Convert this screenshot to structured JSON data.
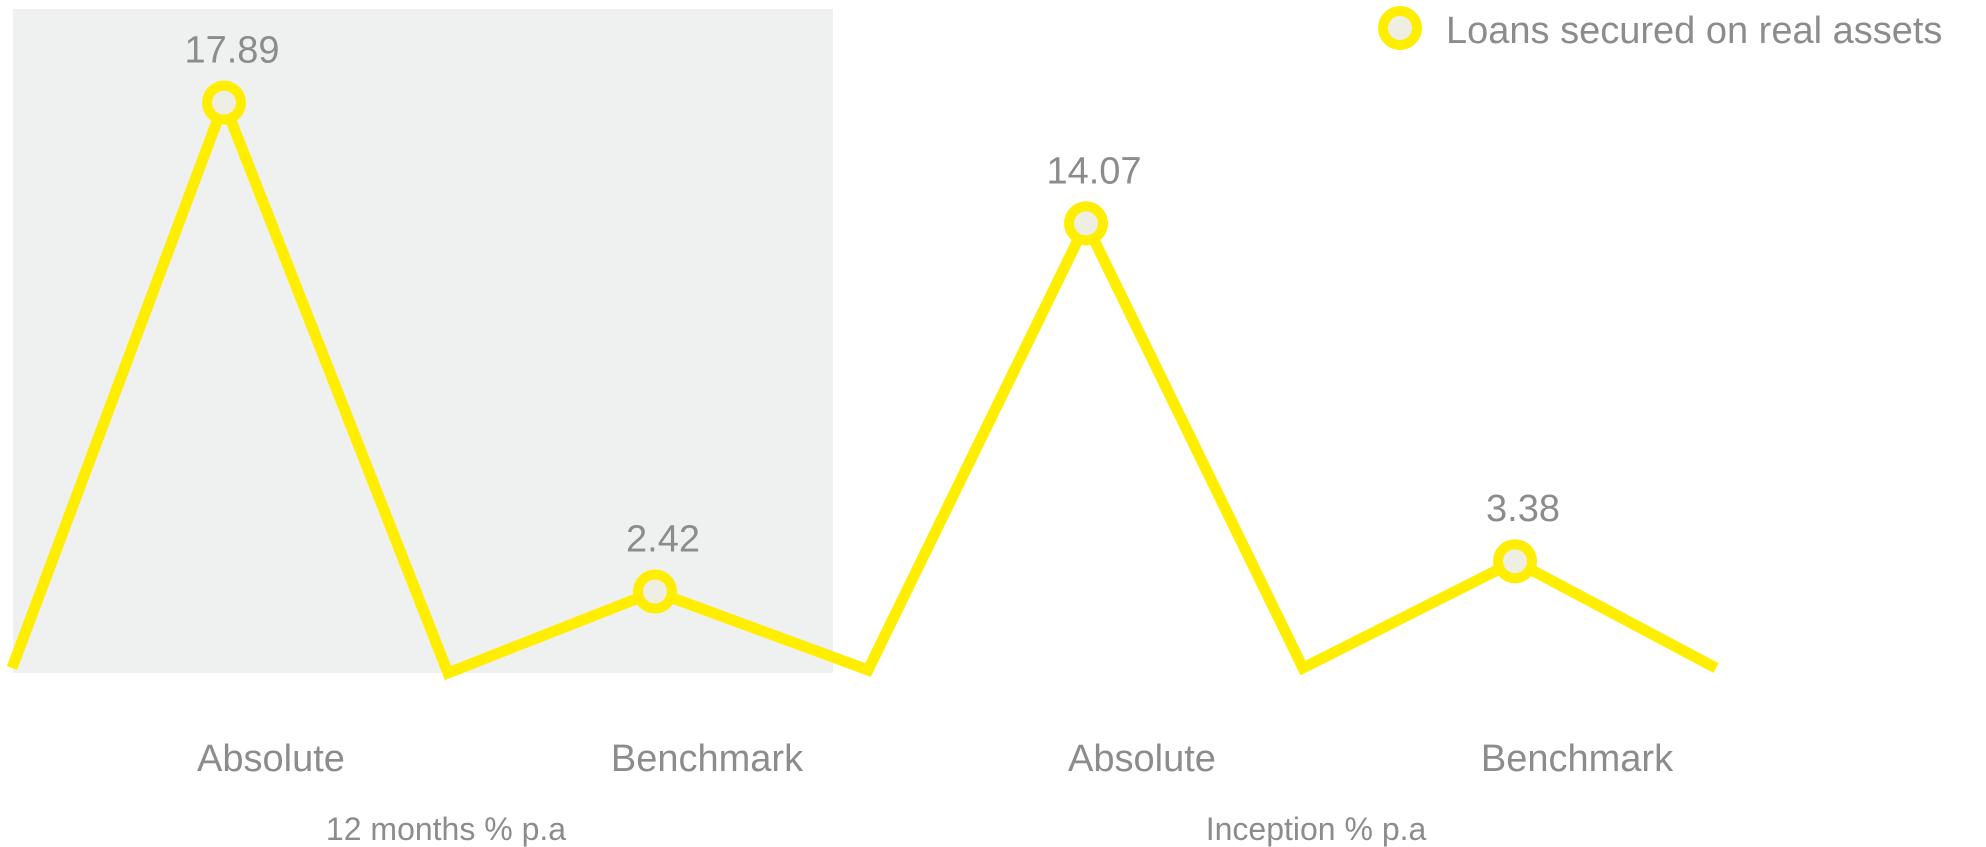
{
  "chart_data": {
    "type": "line",
    "categories": [
      "Absolute",
      "Benchmark",
      "Absolute",
      "Benchmark"
    ],
    "groups": [
      {
        "label": "12 months % p.a",
        "categories": [
          "Absolute",
          "Benchmark"
        ]
      },
      {
        "label": "Inception % p.a",
        "categories": [
          "Absolute",
          "Benchmark"
        ]
      }
    ],
    "series": [
      {
        "name": "Loans secured on real assets",
        "color": "#ffee00",
        "values": [
          17.89,
          2.42,
          14.07,
          3.38
        ],
        "value_labels": [
          "17.89",
          "2.42",
          "14.07",
          "3.38"
        ]
      }
    ],
    "baseline": 0,
    "legend": "top-right",
    "highlighted_group": "12 months % p.a",
    "highlight_color": "#eff0f0",
    "text_color": "#8c8c8c",
    "grid": false
  }
}
